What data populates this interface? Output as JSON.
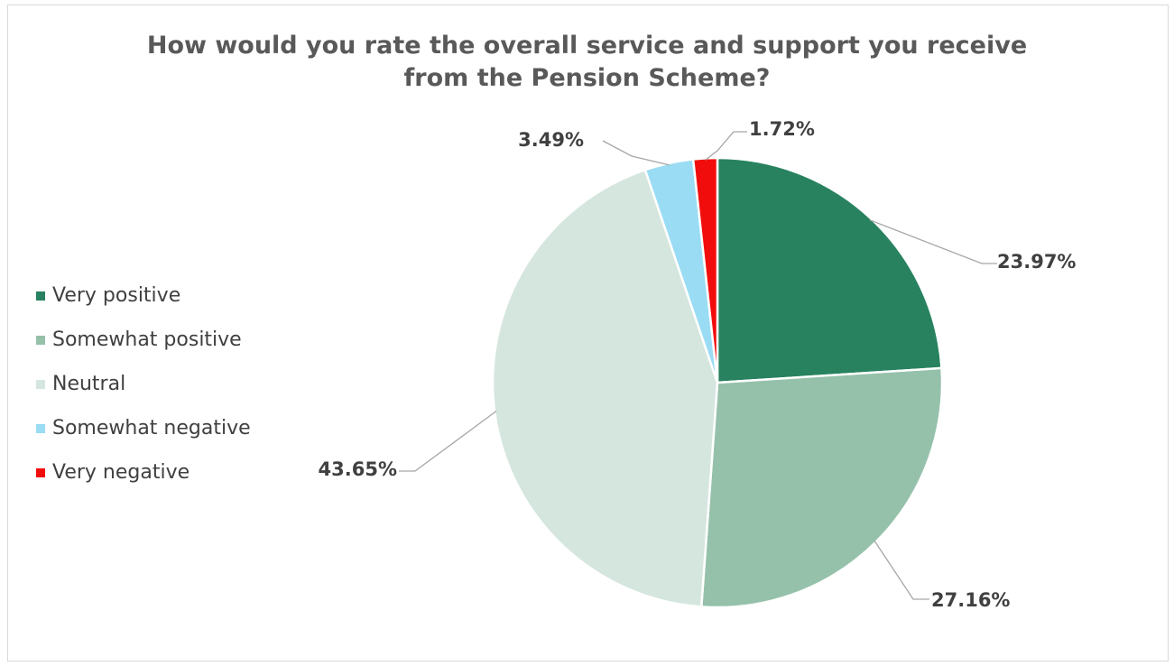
{
  "chart_data": {
    "type": "pie",
    "title_lines": [
      "How would you rate the overall service and support you receive",
      "from the Pension Scheme?"
    ],
    "categories": [
      "Very positive",
      "Somewhat positive",
      "Neutral",
      "Somewhat negative",
      "Very negative"
    ],
    "values": [
      23.97,
      27.16,
      43.65,
      3.49,
      1.72
    ],
    "value_labels": [
      "23.97%",
      "27.16%",
      "43.65%",
      "3.49%",
      "1.72%"
    ],
    "colors": [
      "#288260",
      "#95c1ab",
      "#d5e6de",
      "#9adcf4",
      "#f20d0d"
    ],
    "legend_position": "left",
    "start_angle": "12 o'clock, clockwise"
  }
}
